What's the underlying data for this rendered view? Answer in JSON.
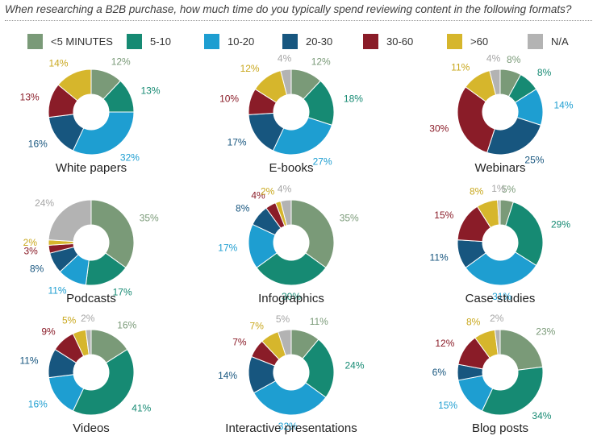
{
  "question": "When researching a B2B purchase, how much time do you typically spend reviewing content in the following formats?",
  "colors": {
    "lt5": "#7a9a78",
    "m5_10": "#168a73",
    "m10_20": "#1e9ed1",
    "m20_30": "#17567f",
    "m30_60": "#8a1c28",
    "gt60": "#d6b62c",
    "na": "#b3b3b3"
  },
  "chart_data": {
    "type": "pie",
    "title": "When researching a B2B purchase, how much time do you typically spend reviewing content in the following formats?",
    "legend_position": "top",
    "categories": [
      "<5 MINUTES",
      "5-10",
      "10-20",
      "20-30",
      "30-60",
      ">60",
      "N/A"
    ],
    "charts": [
      {
        "name": "White papers",
        "values": [
          12,
          13,
          32,
          16,
          13,
          14,
          null
        ],
        "labels": [
          "12%",
          "13%",
          "32%",
          "16%",
          "13%",
          "14%",
          null
        ]
      },
      {
        "name": "E-books",
        "values": [
          12,
          18,
          27,
          17,
          10,
          12,
          4
        ],
        "labels": [
          "12%",
          "18%",
          "27%",
          "17%",
          "10%",
          "12%",
          "4%"
        ]
      },
      {
        "name": "Webinars",
        "values": [
          8,
          8,
          14,
          25,
          30,
          11,
          4
        ],
        "labels": [
          "8%",
          "8%",
          "14%",
          "25%",
          "30%",
          "11%",
          "4%"
        ]
      },
      {
        "name": "Podcasts",
        "values": [
          35,
          17,
          11,
          8,
          3,
          2,
          24
        ],
        "labels": [
          "35%",
          "17%",
          "11%",
          "8%",
          "3%",
          "2%",
          "24%"
        ]
      },
      {
        "name": "Infographics",
        "values": [
          35,
          30,
          17,
          8,
          4,
          2,
          4
        ],
        "labels": [
          "35%",
          "30%",
          "17%",
          "8%",
          "4%",
          "2%",
          "4%"
        ]
      },
      {
        "name": "Case studies",
        "values": [
          5,
          29,
          31,
          11,
          15,
          8,
          1
        ],
        "labels": [
          "5%",
          "29%",
          "31%",
          "11%",
          "15%",
          "8%",
          "1%"
        ]
      },
      {
        "name": "Videos",
        "values": [
          16,
          41,
          16,
          11,
          9,
          5,
          2
        ],
        "labels": [
          "16%",
          "41%",
          "16%",
          "11%",
          "9%",
          "5%",
          "2%"
        ]
      },
      {
        "name": "Interactive presentations",
        "values": [
          11,
          24,
          32,
          14,
          7,
          7,
          5
        ],
        "labels": [
          "11%",
          "24%",
          "32%",
          "14%",
          "7%",
          "7%",
          "5%"
        ]
      },
      {
        "name": "Blog posts",
        "values": [
          23,
          34,
          15,
          6,
          12,
          8,
          2
        ],
        "labels": [
          "23%",
          "34%",
          "15%",
          "6%",
          "12%",
          "8%",
          "2%"
        ]
      }
    ]
  }
}
